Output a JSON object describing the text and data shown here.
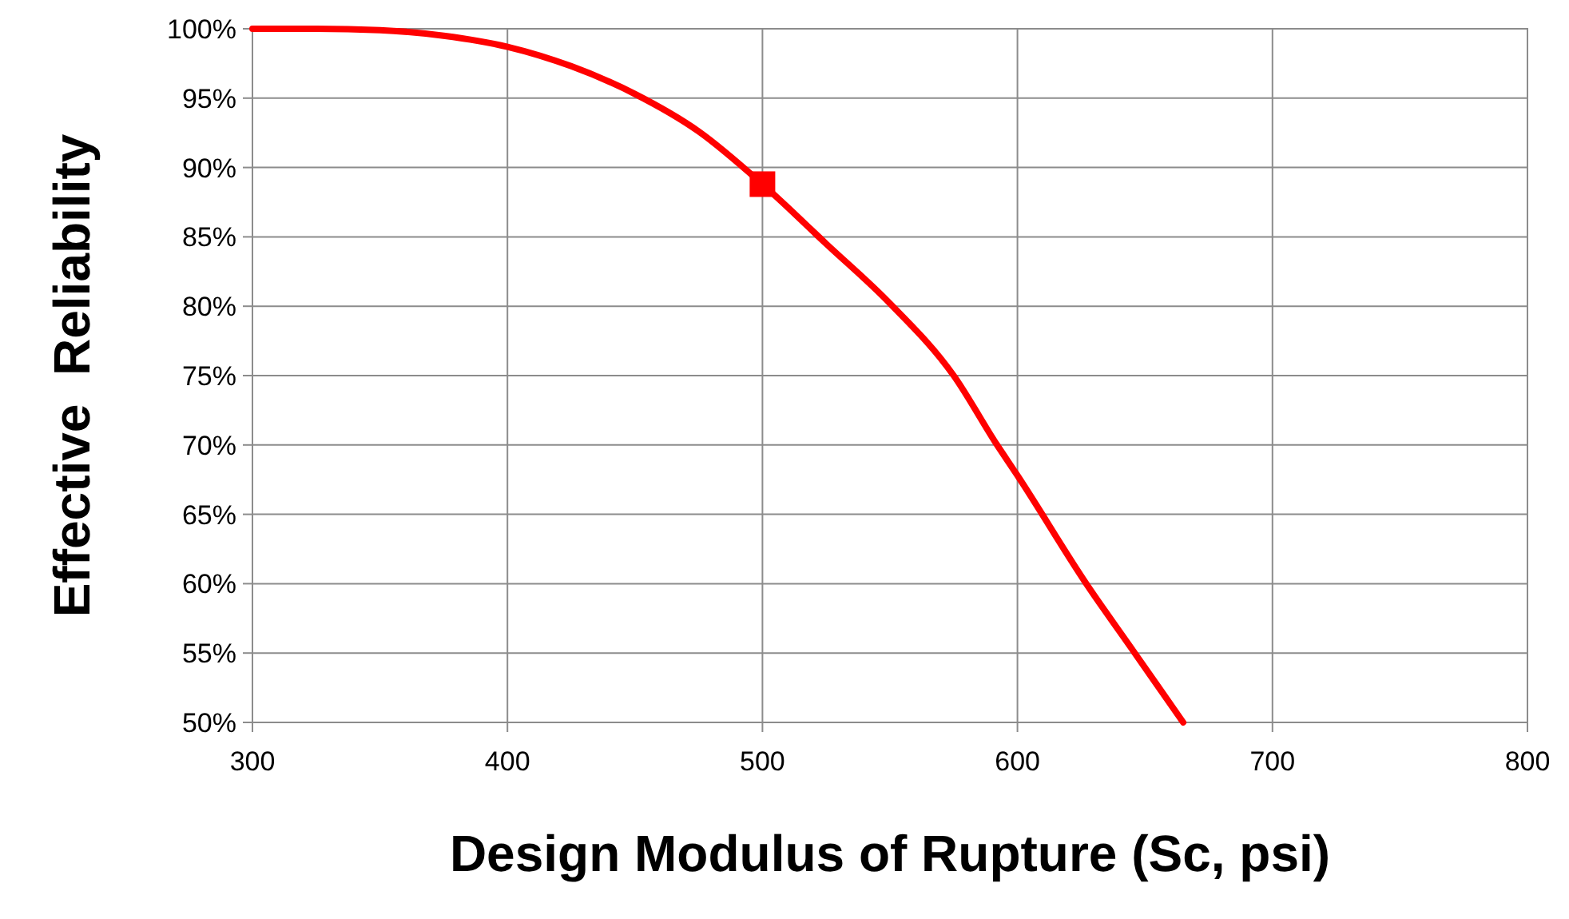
{
  "chart_data": {
    "type": "line",
    "xlabel": "Design Modulus of Rupture (Sc, psi)",
    "ylabel": "Effective  Reliability",
    "series": [
      {
        "color": "#ff0000",
        "marker": "none",
        "line_style": "solid",
        "x": [
          300,
          325,
          350,
          375,
          400,
          425,
          450,
          475,
          500,
          525,
          550,
          575,
          592,
          600,
          627,
          646,
          665
        ],
        "values": [
          100,
          100,
          99.9,
          99.5,
          98.7,
          97.3,
          95.3,
          92.6,
          88.8,
          84.5,
          80.2,
          75,
          70,
          67.8,
          60,
          55,
          50
        ]
      },
      {
        "type": "scatter",
        "color": "#ff0000",
        "marker": "square",
        "x": [
          500
        ],
        "values": [
          88.8
        ]
      }
    ],
    "xlim": [
      300,
      800
    ],
    "xticks": [
      300,
      400,
      500,
      600,
      700,
      800
    ],
    "ylim": [
      50,
      100
    ],
    "yticks": [
      {
        "value": 50,
        "label": "50%"
      },
      {
        "value": 55,
        "label": "55%"
      },
      {
        "value": 60,
        "label": "60%"
      },
      {
        "value": 65,
        "label": "65%"
      },
      {
        "value": 70,
        "label": "70%"
      },
      {
        "value": 75,
        "label": "75%"
      },
      {
        "value": 80,
        "label": "80%"
      },
      {
        "value": 85,
        "label": "85%"
      },
      {
        "value": 90,
        "label": "90%"
      },
      {
        "value": 95,
        "label": "95%"
      },
      {
        "value": 100,
        "label": "100%"
      }
    ],
    "grid": true
  }
}
